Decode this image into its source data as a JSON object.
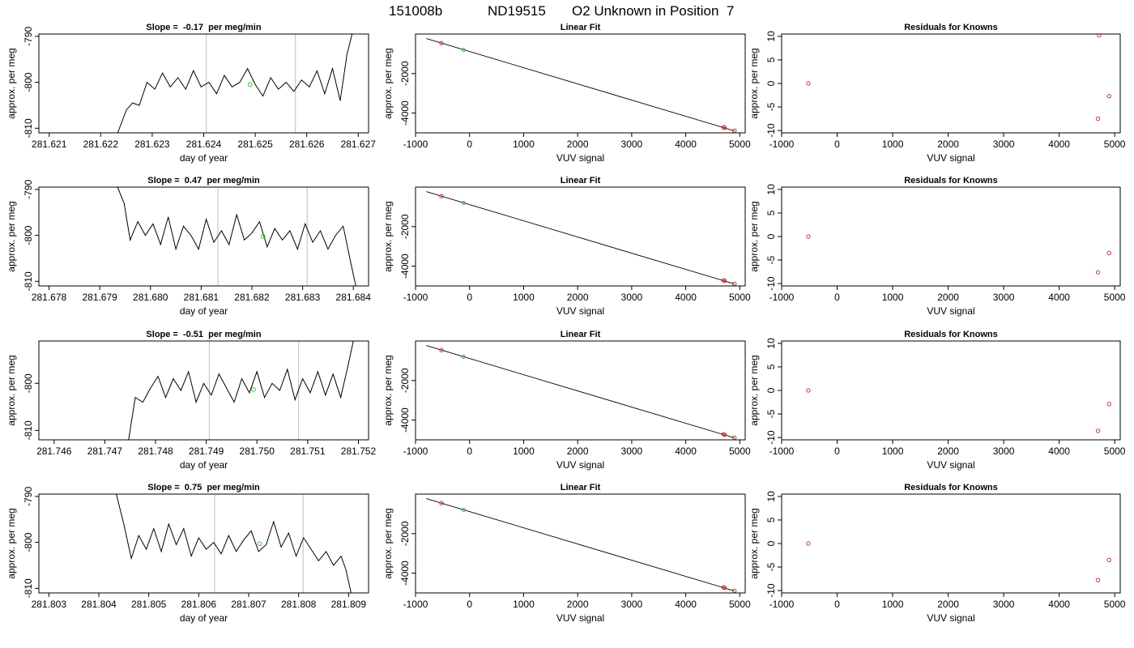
{
  "figure": {
    "title_parts": [
      "151008b",
      "ND19515",
      "O2 Unknown in Position  7"
    ]
  },
  "chart_data": [
    {
      "type": "line",
      "title": "Slope =  -0.17  per meg/min",
      "xlabel": "day of year",
      "ylabel": "approx. per meg",
      "xlim": [
        281.6208,
        281.6272
      ],
      "ylim": [
        -811,
        -789.5
      ],
      "xticks": [
        "281.621",
        "281.622",
        "281.623",
        "281.624",
        "281.625",
        "281.626",
        "281.627"
      ],
      "yticks": [
        "-790",
        "-800",
        "-810"
      ],
      "vlines": [
        281.62405,
        281.62578
      ],
      "series": [
        {
          "x": [
            281.62233,
            281.6225,
            281.62262,
            281.62275,
            281.6229,
            281.62305,
            281.6232,
            281.62335,
            281.6235,
            281.62365,
            281.6238,
            281.62395,
            281.6241,
            281.62425,
            281.6244,
            281.62455,
            281.6247,
            281.62485,
            281.625,
            281.62515,
            281.6253,
            281.62545,
            281.6256,
            281.62575,
            281.6259,
            281.62605,
            281.6262,
            281.62635,
            281.6265,
            281.62665,
            281.62678,
            281.62688
          ],
          "y": [
            -811,
            -806,
            -804.5,
            -805,
            -800,
            -801.5,
            -798,
            -801,
            -799,
            -801.5,
            -797.5,
            -801,
            -800,
            -802.5,
            -798.5,
            -801,
            -800,
            -797,
            -800.5,
            -803,
            -799,
            -801.5,
            -800,
            -802,
            -799.5,
            -801,
            -797.5,
            -802.5,
            -797,
            -804,
            -794,
            -789.5
          ]
        }
      ],
      "marker": {
        "x": 281.6249,
        "y": -800.5
      }
    },
    {
      "type": "scatter",
      "title": "Linear Fit",
      "xlabel": "VUV signal",
      "ylabel": "approx. per meg",
      "xlim": [
        -1000,
        5100
      ],
      "ylim": [
        -5000,
        0
      ],
      "xticks": [
        "-1000",
        "0",
        "1000",
        "2000",
        "3000",
        "4000",
        "5000"
      ],
      "yticks": [
        "-2000",
        "-4000"
      ],
      "fit_line": {
        "x": [
          -800,
          4900
        ],
        "y": [
          -230,
          -4900
        ]
      },
      "points": [
        {
          "x": -520,
          "y": -460,
          "color": "#cc3333"
        },
        {
          "x": -110,
          "y": -800,
          "color": "#33cc33"
        },
        {
          "x": 4700,
          "y": -4720,
          "color": "#cc3333"
        },
        {
          "x": 4720,
          "y": -4740,
          "color": "#cc3333"
        },
        {
          "x": 4900,
          "y": -4890,
          "color": "#cc3333"
        }
      ]
    },
    {
      "type": "scatter",
      "title": "Residuals for Knowns",
      "xlabel": "VUV signal",
      "ylabel": "approx. per meg",
      "xlim": [
        -1000,
        5100
      ],
      "ylim": [
        -10.5,
        10.5
      ],
      "xticks": [
        "-1000",
        "0",
        "1000",
        "2000",
        "3000",
        "4000",
        "5000"
      ],
      "yticks": [
        "10",
        "5",
        "0",
        "-5",
        "-10"
      ],
      "points": [
        {
          "x": -520,
          "y": 0,
          "color": "#cc3333"
        },
        {
          "x": 4720,
          "y": 10.2,
          "color": "#cc3333"
        },
        {
          "x": 4900,
          "y": -2.7,
          "color": "#cc3333"
        },
        {
          "x": 4700,
          "y": -7.5,
          "color": "#cc3333"
        }
      ]
    },
    {
      "type": "line",
      "title": "Slope =  0.47  per meg/min",
      "xlabel": "day of year",
      "ylabel": "approx. per meg",
      "xlim": [
        281.6778,
        281.6843
      ],
      "ylim": [
        -811,
        -789.5
      ],
      "xticks": [
        "281.678",
        "281.679",
        "281.680",
        "281.681",
        "281.682",
        "281.683",
        "281.684"
      ],
      "yticks": [
        "-790",
        "-800",
        "-810"
      ],
      "vlines": [
        281.68133,
        281.68309
      ],
      "series": [
        {
          "x": [
            281.67935,
            281.67948,
            281.6796,
            281.67975,
            281.6799,
            281.68005,
            281.6802,
            281.68035,
            281.6805,
            281.68065,
            281.6808,
            281.68095,
            281.6811,
            281.68125,
            281.6814,
            281.68155,
            281.6817,
            281.68185,
            281.682,
            281.68215,
            281.6823,
            281.68245,
            281.6826,
            281.68275,
            281.6829,
            281.68305,
            281.6832,
            281.68335,
            281.6835,
            281.68365,
            281.6838,
            281.68395,
            281.68405
          ],
          "y": [
            -789.5,
            -793,
            -801,
            -797,
            -800,
            -797.5,
            -802,
            -796,
            -803,
            -798,
            -800,
            -803,
            -796.5,
            -801.5,
            -799,
            -802,
            -795.5,
            -801,
            -799.5,
            -797,
            -802.5,
            -798.5,
            -801,
            -799,
            -803,
            -797.5,
            -801.5,
            -799,
            -803,
            -800,
            -798,
            -806,
            -811
          ]
        }
      ],
      "marker": {
        "x": 281.68222,
        "y": -800.2
      }
    },
    {
      "type": "scatter",
      "title": "Linear Fit",
      "xlabel": "VUV signal",
      "ylabel": "approx. per meg",
      "xlim": [
        -1000,
        5100
      ],
      "ylim": [
        -5000,
        0
      ],
      "xticks": [
        "-1000",
        "0",
        "1000",
        "2000",
        "3000",
        "4000",
        "5000"
      ],
      "yticks": [
        "-2000",
        "-4000"
      ],
      "fit_line": {
        "x": [
          -800,
          4900
        ],
        "y": [
          -230,
          -4900
        ]
      },
      "points": [
        {
          "x": -520,
          "y": -460,
          "color": "#cc3333"
        },
        {
          "x": -110,
          "y": -800,
          "color": "#33cc33"
        },
        {
          "x": 4700,
          "y": -4720,
          "color": "#cc3333"
        },
        {
          "x": 4720,
          "y": -4740,
          "color": "#cc3333"
        },
        {
          "x": 4900,
          "y": -4890,
          "color": "#cc3333"
        }
      ]
    },
    {
      "type": "scatter",
      "title": "Residuals for Knowns",
      "xlabel": "VUV signal",
      "ylabel": "approx. per meg",
      "xlim": [
        -1000,
        5100
      ],
      "ylim": [
        -10.5,
        10.5
      ],
      "xticks": [
        "-1000",
        "0",
        "1000",
        "2000",
        "3000",
        "4000",
        "5000"
      ],
      "yticks": [
        "10",
        "5",
        "0",
        "-5",
        "-10"
      ],
      "points": [
        {
          "x": -520,
          "y": 0,
          "color": "#cc3333"
        },
        {
          "x": 4900,
          "y": -3.5,
          "color": "#cc3333"
        },
        {
          "x": 4700,
          "y": -7.6,
          "color": "#cc3333"
        }
      ]
    },
    {
      "type": "line",
      "title": "Slope =  -0.51  per meg/min",
      "xlabel": "day of year",
      "ylabel": "approx. per meg",
      "xlim": [
        281.7457,
        281.7522
      ],
      "ylim": [
        -812,
        -791
      ],
      "xticks": [
        "281.746",
        "281.747",
        "281.748",
        "281.749",
        "281.750",
        "281.751",
        "281.752"
      ],
      "yticks": [
        "-800",
        "-810"
      ],
      "vlines": [
        281.74906,
        281.75082
      ],
      "series": [
        {
          "x": [
            281.74747,
            281.7476,
            281.74775,
            281.7479,
            281.74805,
            281.7482,
            281.74835,
            281.7485,
            281.74865,
            281.7488,
            281.74895,
            281.7491,
            281.74925,
            281.7494,
            281.74955,
            281.7497,
            281.74985,
            281.75,
            281.75015,
            281.7503,
            281.75045,
            281.7506,
            281.75075,
            281.7509,
            281.75105,
            281.7512,
            281.75135,
            281.7515,
            281.75165,
            281.7518,
            281.7519
          ],
          "y": [
            -812,
            -803,
            -804,
            -801,
            -798.5,
            -803,
            -799,
            -801.5,
            -797.5,
            -804,
            -800,
            -802.5,
            -798,
            -801,
            -804,
            -799,
            -802,
            -797.5,
            -803,
            -800,
            -801.5,
            -797,
            -803.5,
            -799,
            -802,
            -797.5,
            -802.5,
            -798,
            -803,
            -796,
            -791
          ]
        }
      ],
      "marker": {
        "x": 281.74993,
        "y": -801.3
      }
    },
    {
      "type": "scatter",
      "title": "Linear Fit",
      "xlabel": "VUV signal",
      "ylabel": "approx. per meg",
      "xlim": [
        -1000,
        5100
      ],
      "ylim": [
        -5000,
        0
      ],
      "xticks": [
        "-1000",
        "0",
        "1000",
        "2000",
        "3000",
        "4000",
        "5000"
      ],
      "yticks": [
        "-2000",
        "-4000"
      ],
      "fit_line": {
        "x": [
          -800,
          4900
        ],
        "y": [
          -230,
          -4900
        ]
      },
      "points": [
        {
          "x": -520,
          "y": -460,
          "color": "#cc3333"
        },
        {
          "x": -110,
          "y": -800,
          "color": "#33cc33"
        },
        {
          "x": 4700,
          "y": -4720,
          "color": "#cc3333"
        },
        {
          "x": 4720,
          "y": -4740,
          "color": "#cc3333"
        },
        {
          "x": 4900,
          "y": -4890,
          "color": "#cc3333"
        }
      ]
    },
    {
      "type": "scatter",
      "title": "Residuals for Knowns",
      "xlabel": "VUV signal",
      "ylabel": "approx. per meg",
      "xlim": [
        -1000,
        5100
      ],
      "ylim": [
        -10.5,
        10.5
      ],
      "xticks": [
        "-1000",
        "0",
        "1000",
        "2000",
        "3000",
        "4000",
        "5000"
      ],
      "yticks": [
        "10",
        "5",
        "0",
        "-5",
        "-10"
      ],
      "points": [
        {
          "x": -520,
          "y": 0,
          "color": "#cc3333"
        },
        {
          "x": 4900,
          "y": -2.9,
          "color": "#cc3333"
        },
        {
          "x": 4700,
          "y": -8.6,
          "color": "#cc3333"
        }
      ]
    },
    {
      "type": "line",
      "title": "Slope =  0.75  per meg/min",
      "xlabel": "day of year",
      "ylabel": "approx. per meg",
      "xlim": [
        281.8028,
        281.8094
      ],
      "ylim": [
        -811,
        -789.5
      ],
      "xticks": [
        "281.803",
        "281.804",
        "281.805",
        "281.806",
        "281.807",
        "281.808",
        "281.809"
      ],
      "yticks": [
        "-790",
        "-800",
        "-810"
      ],
      "vlines": [
        281.80632,
        281.80809
      ],
      "series": [
        {
          "x": [
            281.80435,
            281.8045,
            281.80465,
            281.8048,
            281.80495,
            281.8051,
            281.80525,
            281.8054,
            281.80555,
            281.8057,
            281.80585,
            281.806,
            281.80615,
            281.8063,
            281.80645,
            281.8066,
            281.80675,
            281.8069,
            281.80705,
            281.8072,
            281.80735,
            281.8075,
            281.80765,
            281.8078,
            281.80795,
            281.8081,
            281.80825,
            281.8084,
            281.80855,
            281.8087,
            281.80885,
            281.80895,
            281.80905
          ],
          "y": [
            -789.5,
            -796,
            -803.5,
            -798.5,
            -801.5,
            -797,
            -802,
            -796,
            -800.5,
            -797,
            -803,
            -799,
            -801.5,
            -800,
            -802.5,
            -798.5,
            -802,
            -799.5,
            -797.5,
            -802,
            -800.5,
            -795.5,
            -801,
            -798,
            -803,
            -799,
            -801.5,
            -804,
            -802,
            -805,
            -803,
            -806,
            -811
          ]
        }
      ],
      "marker": {
        "x": 281.80722,
        "y": -800.3
      }
    },
    {
      "type": "scatter",
      "title": "Linear Fit",
      "xlabel": "VUV signal",
      "ylabel": "approx. per meg",
      "xlim": [
        -1000,
        5100
      ],
      "ylim": [
        -5000,
        0
      ],
      "xticks": [
        "-1000",
        "0",
        "1000",
        "2000",
        "3000",
        "4000",
        "5000"
      ],
      "yticks": [
        "-2000",
        "-4000"
      ],
      "fit_line": {
        "x": [
          -800,
          4900
        ],
        "y": [
          -230,
          -4900
        ]
      },
      "points": [
        {
          "x": -520,
          "y": -460,
          "color": "#cc3333"
        },
        {
          "x": -110,
          "y": -800,
          "color": "#33cc33"
        },
        {
          "x": 4700,
          "y": -4720,
          "color": "#cc3333"
        },
        {
          "x": 4720,
          "y": -4740,
          "color": "#cc3333"
        },
        {
          "x": 4900,
          "y": -4890,
          "color": "#cc3333"
        }
      ]
    },
    {
      "type": "scatter",
      "title": "Residuals for Knowns",
      "xlabel": "VUV signal",
      "ylabel": "approx. per meg",
      "xlim": [
        -1000,
        5100
      ],
      "ylim": [
        -10.5,
        10.5
      ],
      "xticks": [
        "-1000",
        "0",
        "1000",
        "2000",
        "3000",
        "4000",
        "5000"
      ],
      "yticks": [
        "10",
        "5",
        "0",
        "-5",
        "-10"
      ],
      "points": [
        {
          "x": -520,
          "y": 0,
          "color": "#cc3333"
        },
        {
          "x": 4900,
          "y": -3.5,
          "color": "#cc3333"
        },
        {
          "x": 4700,
          "y": -7.8,
          "color": "#cc3333"
        }
      ]
    }
  ]
}
